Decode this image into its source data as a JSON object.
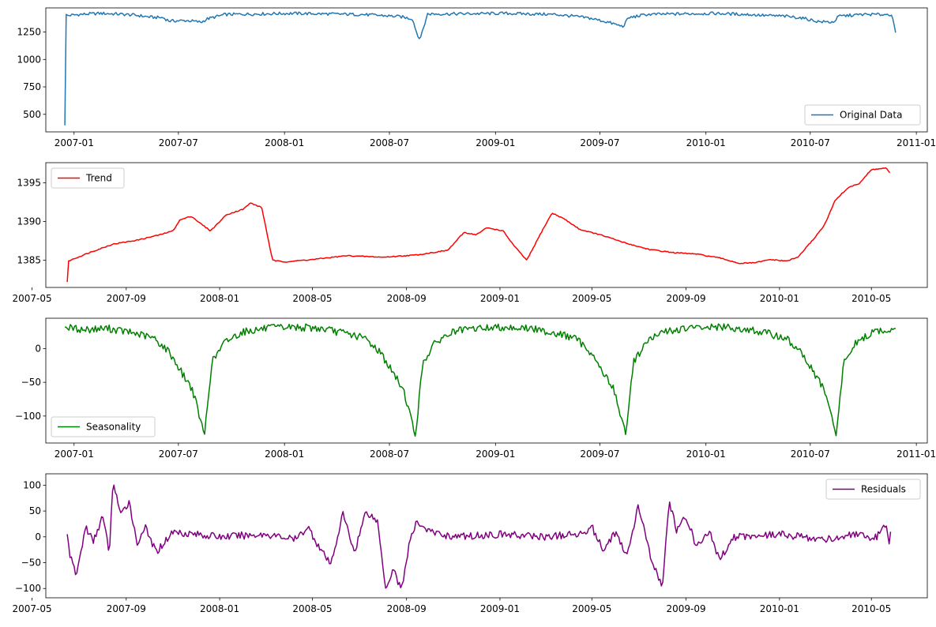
{
  "chart_data": [
    {
      "type": "line",
      "title": "",
      "xlabel": "",
      "ylabel": "",
      "xlim": [
        "2006-11-13",
        "2011-01-20"
      ],
      "ylim": [
        340,
        1470
      ],
      "xticks": [
        "2007-01-01",
        "2007-07-01",
        "2008-01-01",
        "2008-07-01",
        "2009-01-01",
        "2009-07-01",
        "2010-01-01",
        "2010-07-01",
        "2011-01-01"
      ],
      "xtick_labels": [
        "2007-01",
        "2007-07",
        "2008-01",
        "2008-07",
        "2009-01",
        "2009-07",
        "2010-01",
        "2010-07",
        "2011-01"
      ],
      "yticks": [
        500,
        750,
        1000,
        1250
      ],
      "ytick_labels": [
        "500",
        "750",
        "1000",
        "1250"
      ],
      "legend": "lower-right",
      "grid": false,
      "series": [
        {
          "name": "Original Data",
          "color": "#1f77b4",
          "x": [
            "2006-12-16",
            "2006-12-17",
            "2006-12-20",
            "2007-01-10",
            "2007-02-15",
            "2007-03-15",
            "2007-04-15",
            "2007-05-15",
            "2007-06-05",
            "2007-06-15",
            "2007-07-15",
            "2007-08-10",
            "2007-08-20",
            "2007-09-20",
            "2007-11-15",
            "2008-01-15",
            "2008-03-15",
            "2008-05-15",
            "2008-06-20",
            "2008-07-20",
            "2008-08-10",
            "2008-08-20",
            "2008-08-25",
            "2008-09-05",
            "2008-10-15",
            "2009-01-15",
            "2009-04-15",
            "2009-05-15",
            "2009-06-15",
            "2009-07-15",
            "2009-08-10",
            "2009-08-20",
            "2009-09-20",
            "2009-11-15",
            "2010-01-15",
            "2010-03-15",
            "2010-04-15",
            "2010-05-15",
            "2010-06-15",
            "2010-07-15",
            "2010-08-10",
            "2010-08-20",
            "2010-09-30",
            "2010-11-20",
            "2010-11-26"
          ],
          "y": [
            400,
            1420,
            1400,
            1410,
            1420,
            1415,
            1405,
            1385,
            1380,
            1350,
            1355,
            1340,
            1370,
            1410,
            1415,
            1420,
            1415,
            1410,
            1400,
            1390,
            1370,
            1200,
            1210,
            1415,
            1415,
            1420,
            1410,
            1395,
            1375,
            1340,
            1300,
            1380,
            1410,
            1415,
            1420,
            1410,
            1400,
            1395,
            1380,
            1345,
            1340,
            1395,
            1410,
            1410,
            1245
          ]
        }
      ]
    },
    {
      "type": "line",
      "title": "",
      "xlabel": "",
      "ylabel": "",
      "xlim": [
        "2007-05-19",
        "2010-07-13"
      ],
      "ylim": [
        1381.5,
        1397.6
      ],
      "xticks": [
        "2007-05-01",
        "2007-09-01",
        "2008-01-01",
        "2008-05-01",
        "2008-09-01",
        "2009-01-01",
        "2009-05-01",
        "2009-09-01",
        "2010-01-01",
        "2010-05-01"
      ],
      "xtick_labels": [
        "2007-05",
        "2007-09",
        "2008-01",
        "2008-05",
        "2008-09",
        "2009-01",
        "2009-05",
        "2009-09",
        "2010-01",
        "2010-05"
      ],
      "yticks": [
        1385,
        1390,
        1395
      ],
      "ytick_labels": [
        "1385",
        "1390",
        "1395"
      ],
      "legend": "upper-left",
      "grid": false,
      "series": [
        {
          "name": "Trend",
          "color": "#ff0000",
          "x": [
            "2007-06-16",
            "2007-06-17",
            "2007-06-25",
            "2007-07-15",
            "2007-08-15",
            "2007-09-15",
            "2007-10-15",
            "2007-11-01",
            "2007-11-10",
            "2007-11-25",
            "2007-12-05",
            "2007-12-20",
            "2008-01-10",
            "2008-02-01",
            "2008-02-10",
            "2008-02-25",
            "2008-03-10",
            "2008-03-25",
            "2008-05-01",
            "2008-06-15",
            "2008-08-01",
            "2008-09-15",
            "2008-10-25",
            "2008-11-15",
            "2008-12-01",
            "2008-12-15",
            "2009-01-05",
            "2009-01-20",
            "2009-02-05",
            "2009-02-25",
            "2009-03-10",
            "2009-03-25",
            "2009-04-15",
            "2009-05-15",
            "2009-06-15",
            "2009-07-15",
            "2009-08-15",
            "2009-09-15",
            "2009-10-15",
            "2009-11-10",
            "2009-12-01",
            "2009-12-20",
            "2010-01-10",
            "2010-01-25",
            "2010-02-15",
            "2010-03-01",
            "2010-03-15",
            "2010-04-01",
            "2010-04-15",
            "2010-05-01",
            "2010-05-20",
            "2010-05-25"
          ],
          "y": [
            1382.2,
            1384.9,
            1385.2,
            1386.0,
            1387.1,
            1387.6,
            1388.3,
            1388.8,
            1390.2,
            1390.7,
            1389.9,
            1388.8,
            1390.9,
            1391.6,
            1392.4,
            1391.8,
            1385.0,
            1384.8,
            1385.1,
            1385.6,
            1385.4,
            1385.7,
            1386.3,
            1388.6,
            1388.3,
            1389.2,
            1388.8,
            1386.8,
            1385.0,
            1388.8,
            1391.1,
            1390.4,
            1389.0,
            1388.2,
            1387.2,
            1386.4,
            1386.0,
            1385.8,
            1385.3,
            1384.6,
            1384.7,
            1385.1,
            1384.9,
            1385.4,
            1387.8,
            1389.6,
            1392.8,
            1394.4,
            1394.9,
            1396.7,
            1396.9,
            1396.3
          ]
        }
      ]
    },
    {
      "type": "line",
      "title": "",
      "xlabel": "",
      "ylabel": "",
      "xlim": [
        "2006-11-13",
        "2011-01-20"
      ],
      "ylim": [
        -140,
        45
      ],
      "xticks": [
        "2007-01-01",
        "2007-07-01",
        "2008-01-01",
        "2008-07-01",
        "2009-01-01",
        "2009-07-01",
        "2010-01-01",
        "2010-07-01",
        "2011-01-01"
      ],
      "xtick_labels": [
        "2007-01",
        "2007-07",
        "2008-01",
        "2008-07",
        "2009-01",
        "2009-07",
        "2010-01",
        "2010-07",
        "2011-01"
      ],
      "yticks": [
        -100,
        -50,
        0
      ],
      "ytick_labels": [
        "−100",
        "−50",
        "0"
      ],
      "legend": "lower-left",
      "grid": false,
      "series": [
        {
          "name": "Seasonality",
          "color": "#008000",
          "x": [
            "2006-12-16",
            "2007-01-15",
            "2007-03-01",
            "2007-04-20",
            "2007-05-20",
            "2007-06-15",
            "2007-07-10",
            "2007-07-25",
            "2007-08-05",
            "2007-08-15",
            "2007-08-28",
            "2007-09-20",
            "2007-10-20",
            "2007-12-01",
            "2008-01-15",
            "2008-03-01",
            "2008-04-20",
            "2008-05-20",
            "2008-06-15",
            "2008-07-10",
            "2008-07-25",
            "2008-08-05",
            "2008-08-15",
            "2008-08-28",
            "2008-09-20",
            "2008-10-20",
            "2008-12-01",
            "2009-01-15",
            "2009-03-01",
            "2009-04-20",
            "2009-05-20",
            "2009-06-15",
            "2009-07-10",
            "2009-07-25",
            "2009-08-05",
            "2009-08-15",
            "2009-08-28",
            "2009-09-20",
            "2009-10-20",
            "2009-12-01",
            "2010-01-15",
            "2010-03-01",
            "2010-04-20",
            "2010-05-20",
            "2010-06-15",
            "2010-07-10",
            "2010-07-25",
            "2010-08-05",
            "2010-08-15",
            "2010-08-28",
            "2010-09-20",
            "2010-10-20",
            "2010-11-26"
          ],
          "y": [
            32,
            28,
            30,
            22,
            15,
            -5,
            -40,
            -60,
            -95,
            -130,
            -20,
            10,
            25,
            30,
            32,
            30,
            22,
            15,
            -5,
            -40,
            -60,
            -95,
            -130,
            -20,
            10,
            25,
            30,
            32,
            30,
            22,
            15,
            -5,
            -40,
            -60,
            -95,
            -130,
            -20,
            10,
            25,
            30,
            32,
            30,
            22,
            15,
            -5,
            -40,
            -60,
            -95,
            -130,
            -20,
            10,
            25,
            30
          ]
        }
      ]
    },
    {
      "type": "line",
      "title": "",
      "xlabel": "",
      "ylabel": "",
      "xlim": [
        "2007-05-19",
        "2010-07-13"
      ],
      "ylim": [
        -118,
        122
      ],
      "xticks": [
        "2007-05-01",
        "2007-09-01",
        "2008-01-01",
        "2008-05-01",
        "2008-09-01",
        "2009-01-01",
        "2009-05-01",
        "2009-09-01",
        "2010-01-01",
        "2010-05-01"
      ],
      "xtick_labels": [
        "2007-05",
        "2007-09",
        "2008-01",
        "2008-05",
        "2008-09",
        "2009-01",
        "2009-05",
        "2009-09",
        "2010-01",
        "2010-05"
      ],
      "yticks": [
        -100,
        -50,
        0,
        50,
        100
      ],
      "ytick_labels": [
        "−100",
        "−50",
        "0",
        "50",
        "100"
      ],
      "legend": "upper-right",
      "grid": false,
      "series": [
        {
          "name": "Residuals",
          "color": "#800080",
          "x": [
            "2007-06-16",
            "2007-06-20",
            "2007-06-28",
            "2007-07-10",
            "2007-07-20",
            "2007-08-01",
            "2007-08-10",
            "2007-08-15",
            "2007-08-25",
            "2007-09-05",
            "2007-09-15",
            "2007-09-25",
            "2007-10-10",
            "2007-11-01",
            "2008-01-01",
            "2008-03-01",
            "2008-04-10",
            "2008-04-25",
            "2008-05-10",
            "2008-05-25",
            "2008-06-10",
            "2008-06-25",
            "2008-07-10",
            "2008-07-25",
            "2008-08-05",
            "2008-08-15",
            "2008-08-25",
            "2008-09-05",
            "2008-09-15",
            "2008-10-01",
            "2008-11-01",
            "2009-01-01",
            "2009-03-01",
            "2009-04-15",
            "2009-05-01",
            "2009-05-15",
            "2009-06-01",
            "2009-06-15",
            "2009-07-01",
            "2009-07-15",
            "2009-08-01",
            "2009-08-10",
            "2009-08-20",
            "2009-09-01",
            "2009-09-15",
            "2009-10-01",
            "2009-10-15",
            "2009-11-01",
            "2010-01-01",
            "2010-03-01",
            "2010-04-15",
            "2010-05-01",
            "2010-05-20",
            "2010-05-25",
            "2010-05-26"
          ],
          "y": [
            5,
            -40,
            -75,
            20,
            -10,
            40,
            -30,
            110,
            40,
            70,
            -15,
            20,
            -30,
            10,
            0,
            5,
            -5,
            20,
            -20,
            -55,
            45,
            -30,
            50,
            30,
            -100,
            -60,
            -105,
            -10,
            30,
            10,
            0,
            5,
            0,
            5,
            20,
            -25,
            10,
            -40,
            60,
            -30,
            -100,
            70,
            10,
            40,
            -20,
            10,
            -45,
            0,
            5,
            -5,
            5,
            -10,
            20,
            -20,
            10
          ]
        }
      ]
    }
  ]
}
